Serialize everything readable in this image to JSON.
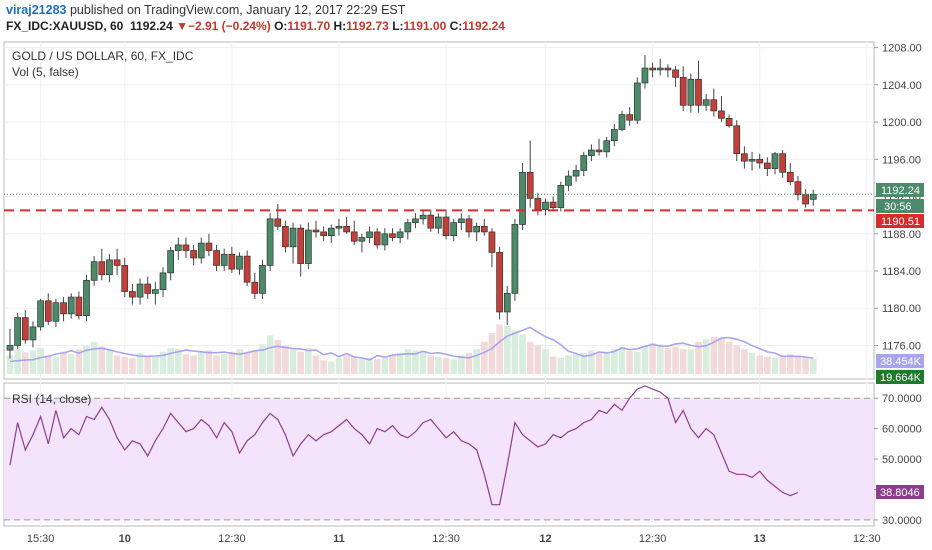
{
  "header": {
    "user": "viraj21283",
    "published_text": "published on TradingView.com, January 12, 2017 22:29 EST",
    "symbol": "FX_IDC:XAUUSD, 60",
    "last": "1192.24",
    "change": "−2.91 (−0.24%)",
    "o_label": "O:",
    "o_value": "1191.70",
    "h_label": "H:",
    "h_value": "1192.73",
    "l_label": "L:",
    "l_value": "1191.00",
    "c_label": "C:",
    "c_value": "1192.24"
  },
  "colors": {
    "up": "#4c8a6a",
    "down": "#c2403a",
    "vol_up": "#d9eddf",
    "vol_down": "#f3dada",
    "vol_ma": "#a8a4ee",
    "rsi": "#8e3d8e",
    "rsi_band": "#f3e3fb",
    "support": "#d62c2c"
  },
  "chart_data": [
    {
      "type": "candlestick",
      "title": "GOLD / US DOLLAR, 60, FX_IDC",
      "subtitle": "Vol (5, false)",
      "y_ticks": [
        "1208.00",
        "1204.00",
        "1200.00",
        "1196.00",
        "1192.00",
        "1188.00",
        "1184.00",
        "1180.00",
        "1176.00"
      ],
      "ylim": [
        1172.4,
        1208.6
      ],
      "x_ticks": [
        "15:30",
        "10",
        "12:30",
        "11",
        "12:30",
        "12",
        "12:30",
        "13",
        "12:30"
      ],
      "last_price_label": "1192.24",
      "countdown_label": "30:56",
      "support_level": 1190.51,
      "support_label": "1190.51",
      "candles": [
        [
          1175.5,
          1177.8,
          1174.6,
          1176.0
        ],
        [
          1176.0,
          1179.5,
          1175.6,
          1179.0
        ],
        [
          1179.0,
          1179.8,
          1176.2,
          1176.6
        ],
        [
          1176.6,
          1178.6,
          1175.8,
          1178.0
        ],
        [
          1178.0,
          1181.0,
          1177.6,
          1180.8
        ],
        [
          1180.8,
          1181.6,
          1178.2,
          1178.6
        ],
        [
          1178.6,
          1181.0,
          1178.0,
          1180.6
        ],
        [
          1180.6,
          1181.2,
          1178.6,
          1179.4
        ],
        [
          1179.4,
          1181.6,
          1178.9,
          1181.2
        ],
        [
          1181.2,
          1181.8,
          1178.8,
          1179.2
        ],
        [
          1179.2,
          1183.6,
          1178.6,
          1183.0
        ],
        [
          1183.0,
          1185.6,
          1182.4,
          1185.0
        ],
        [
          1185.0,
          1186.4,
          1183.0,
          1183.6
        ],
        [
          1183.6,
          1185.8,
          1182.8,
          1185.2
        ],
        [
          1185.2,
          1186.4,
          1183.6,
          1184.6
        ],
        [
          1184.6,
          1185.4,
          1181.2,
          1181.8
        ],
        [
          1181.8,
          1182.6,
          1180.4,
          1181.2
        ],
        [
          1181.2,
          1183.2,
          1180.4,
          1182.6
        ],
        [
          1182.6,
          1183.4,
          1181.0,
          1181.6
        ],
        [
          1181.6,
          1182.8,
          1180.4,
          1182.0
        ],
        [
          1182.0,
          1184.4,
          1181.2,
          1183.8
        ],
        [
          1183.8,
          1186.6,
          1183.0,
          1186.2
        ],
        [
          1186.2,
          1187.6,
          1185.2,
          1186.8
        ],
        [
          1186.8,
          1187.6,
          1185.4,
          1186.2
        ],
        [
          1186.2,
          1186.8,
          1184.6,
          1185.4
        ],
        [
          1185.4,
          1187.6,
          1184.8,
          1187.0
        ],
        [
          1187.0,
          1188.0,
          1185.6,
          1186.2
        ],
        [
          1186.2,
          1186.8,
          1184.0,
          1184.6
        ],
        [
          1184.6,
          1186.4,
          1184.0,
          1185.8
        ],
        [
          1185.8,
          1186.6,
          1183.8,
          1184.2
        ],
        [
          1184.2,
          1186.0,
          1183.6,
          1185.6
        ],
        [
          1185.6,
          1186.2,
          1182.4,
          1182.8
        ],
        [
          1182.8,
          1183.8,
          1181.0,
          1181.6
        ],
        [
          1181.6,
          1185.2,
          1181.0,
          1184.6
        ],
        [
          1184.6,
          1190.2,
          1184.0,
          1189.6
        ],
        [
          1189.6,
          1191.2,
          1188.4,
          1188.8
        ],
        [
          1188.8,
          1189.4,
          1186.0,
          1186.6
        ],
        [
          1186.6,
          1189.2,
          1184.8,
          1188.6
        ],
        [
          1188.6,
          1189.0,
          1183.4,
          1184.8
        ],
        [
          1184.8,
          1189.2,
          1184.2,
          1188.4
        ],
        [
          1188.4,
          1189.4,
          1187.6,
          1188.2
        ],
        [
          1188.2,
          1188.8,
          1187.2,
          1187.8
        ],
        [
          1187.8,
          1189.0,
          1187.0,
          1188.6
        ],
        [
          1188.6,
          1189.6,
          1187.8,
          1188.8
        ],
        [
          1188.8,
          1189.8,
          1188.0,
          1188.2
        ],
        [
          1188.2,
          1189.4,
          1186.8,
          1187.2
        ],
        [
          1187.2,
          1188.0,
          1186.0,
          1187.6
        ],
        [
          1187.6,
          1188.8,
          1187.0,
          1188.2
        ],
        [
          1188.2,
          1188.6,
          1186.4,
          1186.8
        ],
        [
          1186.8,
          1188.6,
          1186.2,
          1188.0
        ],
        [
          1188.0,
          1188.6,
          1187.2,
          1187.6
        ],
        [
          1187.6,
          1188.6,
          1187.0,
          1188.2
        ],
        [
          1188.2,
          1189.6,
          1187.4,
          1189.2
        ],
        [
          1189.2,
          1190.2,
          1188.6,
          1189.6
        ],
        [
          1189.6,
          1190.4,
          1189.0,
          1190.0
        ],
        [
          1190.0,
          1190.6,
          1188.2,
          1188.6
        ],
        [
          1188.6,
          1190.2,
          1188.0,
          1189.8
        ],
        [
          1189.8,
          1190.6,
          1187.4,
          1187.8
        ],
        [
          1187.8,
          1189.6,
          1187.2,
          1189.2
        ],
        [
          1189.2,
          1190.2,
          1188.4,
          1189.6
        ],
        [
          1189.6,
          1190.0,
          1187.6,
          1188.2
        ],
        [
          1188.2,
          1189.2,
          1187.2,
          1188.8
        ],
        [
          1188.8,
          1189.6,
          1187.8,
          1188.2
        ],
        [
          1188.2,
          1188.6,
          1184.4,
          1186.0
        ],
        [
          1186.0,
          1186.6,
          1178.8,
          1179.6
        ],
        [
          1179.6,
          1182.4,
          1178.2,
          1181.6
        ],
        [
          1181.6,
          1189.6,
          1180.8,
          1189.0
        ],
        [
          1189.0,
          1195.6,
          1188.4,
          1194.6
        ],
        [
          1194.6,
          1198.0,
          1190.8,
          1191.8
        ],
        [
          1191.8,
          1192.4,
          1190.0,
          1190.6
        ],
        [
          1190.6,
          1191.8,
          1190.0,
          1191.4
        ],
        [
          1191.4,
          1192.0,
          1190.4,
          1190.8
        ],
        [
          1190.8,
          1193.6,
          1190.4,
          1193.2
        ],
        [
          1193.2,
          1194.8,
          1192.6,
          1194.2
        ],
        [
          1194.2,
          1195.4,
          1193.6,
          1194.8
        ],
        [
          1194.8,
          1196.8,
          1194.2,
          1196.4
        ],
        [
          1196.4,
          1197.6,
          1195.8,
          1197.0
        ],
        [
          1197.0,
          1198.2,
          1196.4,
          1196.8
        ],
        [
          1196.8,
          1198.4,
          1196.2,
          1198.0
        ],
        [
          1198.0,
          1199.8,
          1197.4,
          1199.2
        ],
        [
          1199.2,
          1201.2,
          1199.0,
          1200.8
        ],
        [
          1200.8,
          1201.6,
          1199.6,
          1200.2
        ],
        [
          1200.2,
          1204.8,
          1199.8,
          1204.2
        ],
        [
          1204.2,
          1207.2,
          1203.6,
          1205.8
        ],
        [
          1205.8,
          1206.4,
          1204.8,
          1205.6
        ],
        [
          1205.6,
          1206.8,
          1205.0,
          1205.8
        ],
        [
          1205.8,
          1206.2,
          1204.8,
          1205.6
        ],
        [
          1205.6,
          1206.0,
          1203.8,
          1204.8
        ],
        [
          1204.8,
          1206.0,
          1201.2,
          1201.8
        ],
        [
          1201.8,
          1205.2,
          1201.0,
          1204.6
        ],
        [
          1204.6,
          1206.6,
          1201.0,
          1201.8
        ],
        [
          1201.8,
          1203.0,
          1201.2,
          1202.4
        ],
        [
          1202.4,
          1203.6,
          1200.6,
          1201.2
        ],
        [
          1201.2,
          1202.8,
          1200.0,
          1200.4
        ],
        [
          1200.4,
          1200.8,
          1199.4,
          1199.6
        ],
        [
          1199.6,
          1200.2,
          1195.8,
          1196.6
        ],
        [
          1196.6,
          1197.4,
          1195.0,
          1195.8
        ],
        [
          1195.8,
          1196.8,
          1194.8,
          1196.0
        ],
        [
          1196.0,
          1196.6,
          1195.0,
          1195.6
        ],
        [
          1195.6,
          1196.2,
          1194.2,
          1195.0
        ],
        [
          1195.0,
          1196.8,
          1194.4,
          1196.6
        ],
        [
          1196.6,
          1197.0,
          1194.0,
          1194.6
        ],
        [
          1194.6,
          1195.6,
          1193.2,
          1193.6
        ],
        [
          1193.6,
          1194.2,
          1191.6,
          1192.2
        ],
        [
          1192.2,
          1192.8,
          1190.8,
          1191.2
        ],
        [
          1191.7,
          1192.73,
          1191.0,
          1192.24
        ]
      ]
    },
    {
      "type": "bar",
      "title": "Vol (5, false)",
      "series_labels": [
        "38.454K",
        "19.664K"
      ],
      "values": [
        30,
        40,
        35,
        38,
        42,
        30,
        28,
        36,
        32,
        40,
        45,
        52,
        44,
        38,
        30,
        28,
        26,
        34,
        30,
        28,
        36,
        42,
        40,
        32,
        30,
        35,
        38,
        30,
        32,
        36,
        40,
        34,
        36,
        48,
        62,
        55,
        45,
        40,
        36,
        42,
        30,
        22,
        20,
        26,
        30,
        28,
        24,
        26,
        24,
        28,
        30,
        34,
        40,
        38,
        36,
        30,
        28,
        26,
        24,
        30,
        34,
        40,
        52,
        66,
        80,
        78,
        70,
        64,
        52,
        46,
        40,
        28,
        26,
        30,
        32,
        34,
        38,
        34,
        36,
        40,
        44,
        38,
        36,
        46,
        50,
        48,
        42,
        44,
        40,
        40,
        52,
        56,
        60,
        58,
        52,
        46,
        40,
        34,
        30,
        28,
        26,
        30,
        32,
        30,
        28,
        24,
        20,
        22
      ],
      "ma": [
        20.2,
        21.5,
        22.4,
        23.0,
        26.5,
        28.4,
        32.3,
        34.1,
        37.6,
        33.6,
        38.4,
        40.7,
        41.4,
        39.0,
        35.6,
        33.0,
        30.8,
        28.8,
        28.6,
        29.1,
        30.0,
        33.4,
        35.9,
        38.6,
        36.9,
        35.8,
        34.4,
        34.4,
        35.4,
        33.3,
        31.9,
        34.4,
        37.4,
        38.6,
        42.6,
        44.7,
        42.9,
        41.2,
        40.5,
        37.8,
        38.5,
        31.2,
        33.8,
        28.1,
        33.1,
        27.4,
        25.9,
        22.8,
        29.7,
        27.2,
        30.5,
        31.6,
        32.6,
        32.5,
        36.7,
        33.1,
        34.4,
        31.6,
        28.7,
        27.3,
        25.9,
        29.8,
        34.9,
        41.3,
        51.7,
        61.3,
        65.6,
        70.6,
        75.2,
        67.3,
        60.1,
        55.4,
        47.1,
        36.6,
        33.0,
        28.4,
        30.5,
        35.6,
        33.8,
        36.3,
        42.0,
        39.5,
        40.6,
        44.7,
        47.6,
        45.2,
        44.8,
        48.6,
        49.7,
        46.1,
        44.0,
        45.7,
        51.1,
        58.0,
        58.8,
        56.0,
        52.0,
        45.6,
        40.9,
        35.6,
        33.7,
        28.3,
        28.7,
        28.5,
        27.4,
        25.4,
        25.2,
        22.6
      ]
    },
    {
      "type": "line",
      "title": "RSI (14, close)",
      "y_ticks": [
        "70.0000",
        "60.0000",
        "50.0000",
        "40.0000",
        "30.0000"
      ],
      "ylim": [
        28,
        75
      ],
      "band": [
        30,
        70
      ],
      "last_label": "38.8046",
      "values": [
        48,
        62,
        53,
        58,
        64,
        55,
        66,
        57,
        60,
        58,
        64,
        63,
        67,
        63,
        57,
        53,
        56,
        55,
        51,
        56,
        60,
        65,
        62,
        59,
        60,
        63,
        61,
        57,
        62,
        59,
        52,
        56,
        58,
        62,
        65,
        63,
        58,
        51,
        55,
        58,
        56,
        58,
        59,
        61,
        63,
        60,
        58,
        55,
        60,
        59,
        61,
        58,
        57,
        59,
        62,
        63,
        60,
        57,
        59,
        56,
        55,
        53,
        45,
        35,
        35,
        48,
        62,
        58,
        56,
        54,
        55,
        58,
        57,
        59,
        60,
        62,
        63,
        66,
        65,
        68,
        66,
        70,
        73,
        74,
        73,
        72,
        70,
        62,
        66,
        60,
        57,
        60,
        58,
        52,
        46,
        45,
        45,
        44,
        46,
        43,
        41,
        39,
        38,
        39
      ]
    }
  ]
}
